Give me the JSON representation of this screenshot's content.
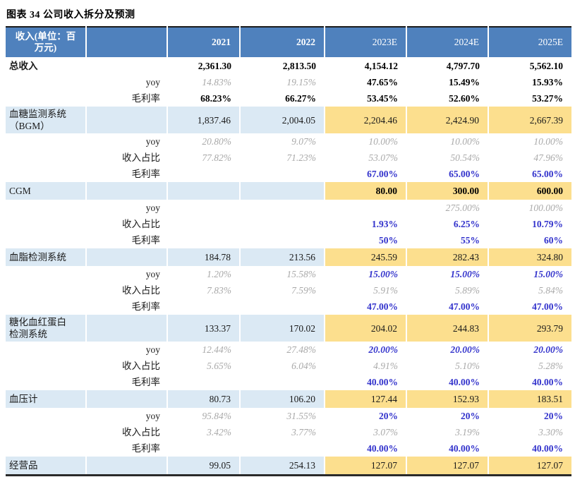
{
  "title": "图表 34 公司收入拆分及预测",
  "colors": {
    "header_bg": "#4f81bd",
    "section_bg": "#dbe9f4",
    "forecast_bg": "#fcdf8e",
    "blue_text": "#3333cc",
    "gray_text": "#a9a9a9"
  },
  "table": {
    "columns": [
      {
        "label": "收入(单位：百\n万元)",
        "bold": true
      },
      {
        "label": "",
        "bold": false
      },
      {
        "label": "2021",
        "bold": true
      },
      {
        "label": "2022",
        "bold": true
      },
      {
        "label": "2023E",
        "bold": false
      },
      {
        "label": "2024E",
        "bold": false
      },
      {
        "label": "2025E",
        "bold": false
      }
    ],
    "rows": [
      {
        "type": "total",
        "label": "总收入",
        "values": [
          "2,361.30",
          "2,813.50",
          "4,154.12",
          "4,797.70",
          "5,562.10"
        ],
        "styles": [
          "b",
          "b",
          "b",
          "b",
          "b"
        ]
      },
      {
        "type": "sub",
        "label": "yoy",
        "values": [
          "14.83%",
          "19.15%",
          "47.65%",
          "15.49%",
          "15.93%"
        ],
        "styles": [
          "g",
          "g",
          "b",
          "b",
          "b"
        ]
      },
      {
        "type": "sub",
        "label": "毛利率",
        "values": [
          "68.23%",
          "66.27%",
          "53.45%",
          "52.60%",
          "53.27%"
        ],
        "styles": [
          "b",
          "b",
          "b",
          "b",
          "b"
        ]
      },
      {
        "type": "section",
        "label": "血糖监测系统\n（BGM）",
        "values": [
          "1,837.46",
          "2,004.05",
          "2,204.46",
          "2,424.90",
          "2,667.39"
        ],
        "styles": [
          "n",
          "n",
          "n",
          "n",
          "n"
        ]
      },
      {
        "type": "sub",
        "label": "yoy",
        "values": [
          "20.80%",
          "9.07%",
          "10.00%",
          "10.00%",
          "10.00%"
        ],
        "styles": [
          "g",
          "g",
          "g",
          "g",
          "g"
        ]
      },
      {
        "type": "sub",
        "label": "收入占比",
        "values": [
          "77.82%",
          "71.23%",
          "53.07%",
          "50.54%",
          "47.96%"
        ],
        "styles": [
          "g",
          "g",
          "g",
          "g",
          "g"
        ]
      },
      {
        "type": "sub",
        "label": "毛利率",
        "values": [
          "",
          "",
          "67.00%",
          "65.00%",
          "65.00%"
        ],
        "styles": [
          "e",
          "e",
          "bl",
          "bl",
          "bl"
        ]
      },
      {
        "type": "section",
        "label": "CGM",
        "values": [
          "",
          "",
          "80.00",
          "300.00",
          "600.00"
        ],
        "styles": [
          "e",
          "e",
          "b",
          "b",
          "b"
        ]
      },
      {
        "type": "sub",
        "label": "yoy",
        "values": [
          "",
          "",
          "",
          "275.00%",
          "100.00%"
        ],
        "styles": [
          "e",
          "e",
          "e",
          "g",
          "g"
        ]
      },
      {
        "type": "sub",
        "label": "收入占比",
        "values": [
          "",
          "",
          "1.93%",
          "6.25%",
          "10.79%"
        ],
        "styles": [
          "e",
          "e",
          "bl",
          "bl",
          "bl"
        ]
      },
      {
        "type": "sub",
        "label": "毛利率",
        "values": [
          "",
          "",
          "50%",
          "55%",
          "60%"
        ],
        "styles": [
          "e",
          "e",
          "bl",
          "bl",
          "bl"
        ]
      },
      {
        "type": "section",
        "label": "血脂检测系统",
        "values": [
          "184.78",
          "213.56",
          "245.59",
          "282.43",
          "324.80"
        ],
        "styles": [
          "n",
          "n",
          "n",
          "n",
          "n"
        ]
      },
      {
        "type": "sub",
        "label": "yoy",
        "values": [
          "1.20%",
          "15.58%",
          "15.00%",
          "15.00%",
          "15.00%"
        ],
        "styles": [
          "g",
          "g",
          "bli",
          "bli",
          "bli"
        ]
      },
      {
        "type": "sub",
        "label": "收入占比",
        "values": [
          "7.83%",
          "7.59%",
          "5.91%",
          "5.89%",
          "5.84%"
        ],
        "styles": [
          "g",
          "g",
          "g",
          "g",
          "g"
        ]
      },
      {
        "type": "sub",
        "label": "毛利率",
        "values": [
          "",
          "",
          "47.00%",
          "47.00%",
          "47.00%"
        ],
        "styles": [
          "e",
          "e",
          "bl",
          "bl",
          "bl"
        ]
      },
      {
        "type": "section",
        "label": "糖化血红蛋白\n检测系统",
        "values": [
          "133.37",
          "170.02",
          "204.02",
          "244.83",
          "293.79"
        ],
        "styles": [
          "n",
          "n",
          "n",
          "n",
          "n"
        ]
      },
      {
        "type": "sub",
        "label": "yoy",
        "values": [
          "12.44%",
          "27.48%",
          "20.00%",
          "20.00%",
          "20.00%"
        ],
        "styles": [
          "g",
          "g",
          "bli",
          "bli",
          "bli"
        ]
      },
      {
        "type": "sub",
        "label": "收入占比",
        "values": [
          "5.65%",
          "6.04%",
          "4.91%",
          "5.10%",
          "5.28%"
        ],
        "styles": [
          "g",
          "g",
          "g",
          "g",
          "g"
        ]
      },
      {
        "type": "sub",
        "label": "毛利率",
        "values": [
          "",
          "",
          "40.00%",
          "40.00%",
          "40.00%"
        ],
        "styles": [
          "e",
          "e",
          "bl",
          "bl",
          "bl"
        ]
      },
      {
        "type": "section",
        "label": "血压计",
        "values": [
          "80.73",
          "106.20",
          "127.44",
          "152.93",
          "183.51"
        ],
        "styles": [
          "n",
          "n",
          "n",
          "n",
          "n"
        ]
      },
      {
        "type": "sub",
        "label": "yoy",
        "values": [
          "95.84%",
          "31.55%",
          "20%",
          "20%",
          "20%"
        ],
        "styles": [
          "g",
          "g",
          "bl",
          "bl",
          "bl"
        ]
      },
      {
        "type": "sub",
        "label": "收入占比",
        "values": [
          "3.42%",
          "3.77%",
          "3.07%",
          "3.19%",
          "3.30%"
        ],
        "styles": [
          "g",
          "g",
          "g",
          "g",
          "g"
        ]
      },
      {
        "type": "sub",
        "label": "毛利率",
        "values": [
          "",
          "",
          "40.00%",
          "40.00%",
          "40.00%"
        ],
        "styles": [
          "e",
          "e",
          "bl",
          "bl",
          "bl"
        ]
      },
      {
        "type": "section",
        "label": "经营品",
        "values": [
          "99.05",
          "254.13",
          "127.07",
          "127.07",
          "127.07"
        ],
        "styles": [
          "n",
          "n",
          "n",
          "n",
          "n"
        ]
      }
    ]
  }
}
